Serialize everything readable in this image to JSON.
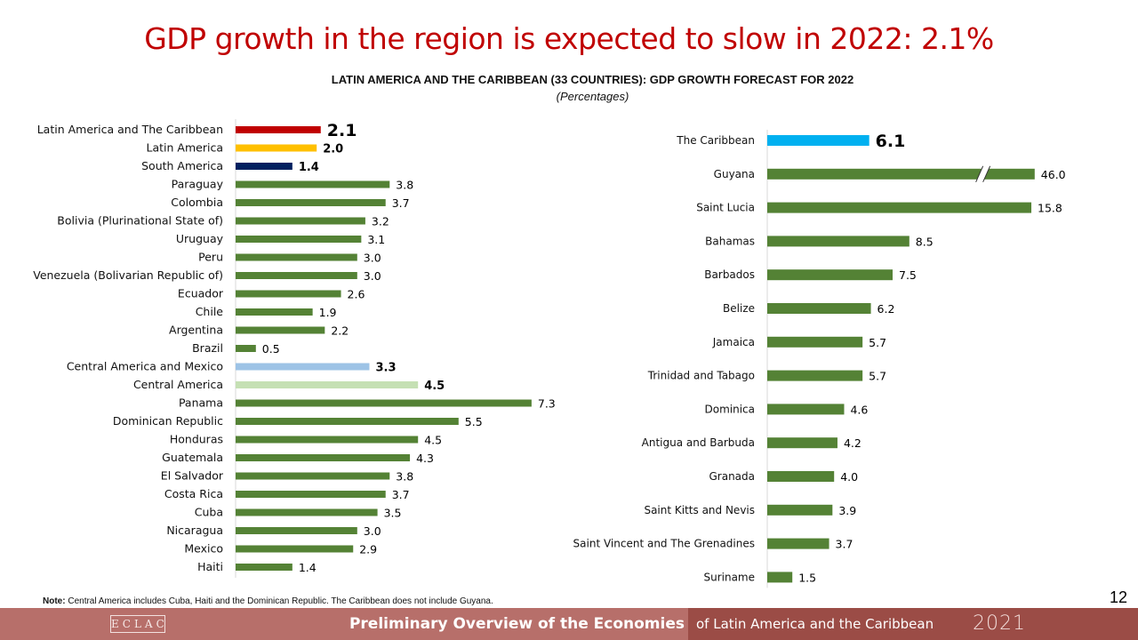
{
  "title": "GDP growth in the region is expected to slow in 2022: 2.1%",
  "chart_title": "LATIN AMERICA AND THE CARIBBEAN (33 COUNTRIES): GDP GROWTH FORECAST FOR 2022",
  "chart_subtitle": "(Percentages)",
  "note_label": "Note:",
  "note_text": "Central America includes Cuba, Haiti and the Dominican Republic. The Caribbean does not include Guyana.",
  "page_number": "12",
  "footer": {
    "logo_text": "ECLAC",
    "title_strong": "Preliminary Overview of the Economies",
    "title_light": "of Latin America and the Caribbean",
    "year": "2021"
  },
  "colors": {
    "title": "#c00000",
    "country_bar": "#548235",
    "latin_america_caribbean": "#c00000",
    "latin_america": "#ffc000",
    "south_america": "#002060",
    "central_america_mexico": "#9dc3e6",
    "central_america": "#c5e0b4",
    "caribbean": "#00b0f0"
  },
  "chart_data": [
    {
      "type": "bar",
      "orientation": "horizontal",
      "title": "LATIN AMERICA AND THE CARIBBEAN (33 COUNTRIES): GDP GROWTH FORECAST FOR 2022",
      "unit": "Percentages",
      "xlim": [
        0,
        8
      ],
      "items": [
        {
          "label": "Latin America and The Caribbean",
          "value": 2.1,
          "display": "2.1",
          "kind": "aggregate",
          "color": "#c00000",
          "emphasis": "large"
        },
        {
          "label": "Latin America",
          "value": 2.0,
          "display": "2.0",
          "kind": "aggregate",
          "color": "#ffc000",
          "emphasis": "bold"
        },
        {
          "label": "South America",
          "value": 1.4,
          "display": "1.4",
          "kind": "aggregate",
          "color": "#002060",
          "emphasis": "bold"
        },
        {
          "label": "Paraguay",
          "value": 3.8,
          "display": "3.8",
          "kind": "country"
        },
        {
          "label": "Colombia",
          "value": 3.7,
          "display": "3.7",
          "kind": "country"
        },
        {
          "label": "Bolivia (Plurinational State of)",
          "value": 3.2,
          "display": "3.2",
          "kind": "country"
        },
        {
          "label": "Uruguay",
          "value": 3.1,
          "display": "3.1",
          "kind": "country"
        },
        {
          "label": "Peru",
          "value": 3.0,
          "display": "3.0",
          "kind": "country"
        },
        {
          "label": "Venezuela (Bolivarian Republic of)",
          "value": 3.0,
          "display": "3.0",
          "kind": "country"
        },
        {
          "label": "Ecuador",
          "value": 2.6,
          "display": "2.6",
          "kind": "country"
        },
        {
          "label": "Chile",
          "value": 1.9,
          "display": "1.9",
          "kind": "country"
        },
        {
          "label": "Argentina",
          "value": 2.2,
          "display": "2.2",
          "kind": "country"
        },
        {
          "label": "Brazil",
          "value": 0.5,
          "display": "0.5",
          "kind": "country"
        },
        {
          "label": "Central America and Mexico",
          "value": 3.3,
          "display": "3.3",
          "kind": "aggregate",
          "color": "#9dc3e6",
          "emphasis": "bold"
        },
        {
          "label": "Central America",
          "value": 4.5,
          "display": "4.5",
          "kind": "aggregate",
          "color": "#c5e0b4",
          "emphasis": "bold"
        },
        {
          "label": "Panama",
          "value": 7.3,
          "display": "7.3",
          "kind": "country"
        },
        {
          "label": "Dominican Republic",
          "value": 5.5,
          "display": "5.5",
          "kind": "country"
        },
        {
          "label": "Honduras",
          "value": 4.5,
          "display": "4.5",
          "kind": "country"
        },
        {
          "label": "Guatemala",
          "value": 4.3,
          "display": "4.3",
          "kind": "country"
        },
        {
          "label": "El Salvador",
          "value": 3.8,
          "display": "3.8",
          "kind": "country"
        },
        {
          "label": "Costa Rica",
          "value": 3.7,
          "display": "3.7",
          "kind": "country"
        },
        {
          "label": "Cuba",
          "value": 3.5,
          "display": "3.5",
          "kind": "country"
        },
        {
          "label": "Nicaragua",
          "value": 3.0,
          "display": "3.0",
          "kind": "country"
        },
        {
          "label": "Mexico",
          "value": 2.9,
          "display": "2.9",
          "kind": "country"
        },
        {
          "label": "Haiti",
          "value": 1.4,
          "display": "1.4",
          "kind": "country"
        }
      ]
    },
    {
      "type": "bar",
      "orientation": "horizontal",
      "title": "The Caribbean",
      "unit": "Percentages",
      "xlim": [
        0,
        16
      ],
      "axis_break": {
        "label": "Guyana",
        "capped_at": 16.0
      },
      "items": [
        {
          "label": "The Caribbean",
          "value": 6.1,
          "display": "6.1",
          "kind": "aggregate",
          "color": "#00b0f0",
          "emphasis": "large"
        },
        {
          "label": "Guyana",
          "value": 46.0,
          "display": "46.0",
          "kind": "country",
          "broken": true
        },
        {
          "label": "Saint Lucia",
          "value": 15.8,
          "display": "15.8",
          "kind": "country"
        },
        {
          "label": "Bahamas",
          "value": 8.5,
          "display": "8.5",
          "kind": "country"
        },
        {
          "label": "Barbados",
          "value": 7.5,
          "display": "7.5",
          "kind": "country"
        },
        {
          "label": "Belize",
          "value": 6.2,
          "display": "6.2",
          "kind": "country"
        },
        {
          "label": "Jamaica",
          "value": 5.7,
          "display": "5.7",
          "kind": "country"
        },
        {
          "label": "Trinidad and Tabago",
          "value": 5.7,
          "display": "5.7",
          "kind": "country"
        },
        {
          "label": "Dominica",
          "value": 4.6,
          "display": "4.6",
          "kind": "country"
        },
        {
          "label": "Antigua and Barbuda",
          "value": 4.2,
          "display": "4.2",
          "kind": "country"
        },
        {
          "label": "Granada",
          "value": 4.0,
          "display": "4.0",
          "kind": "country"
        },
        {
          "label": "Saint Kitts and Nevis",
          "value": 3.9,
          "display": "3.9",
          "kind": "country"
        },
        {
          "label": "Saint Vincent and The Grenadines",
          "value": 3.7,
          "display": "3.7",
          "kind": "country"
        },
        {
          "label": "Suriname",
          "value": 1.5,
          "display": "1.5",
          "kind": "country"
        }
      ]
    }
  ]
}
